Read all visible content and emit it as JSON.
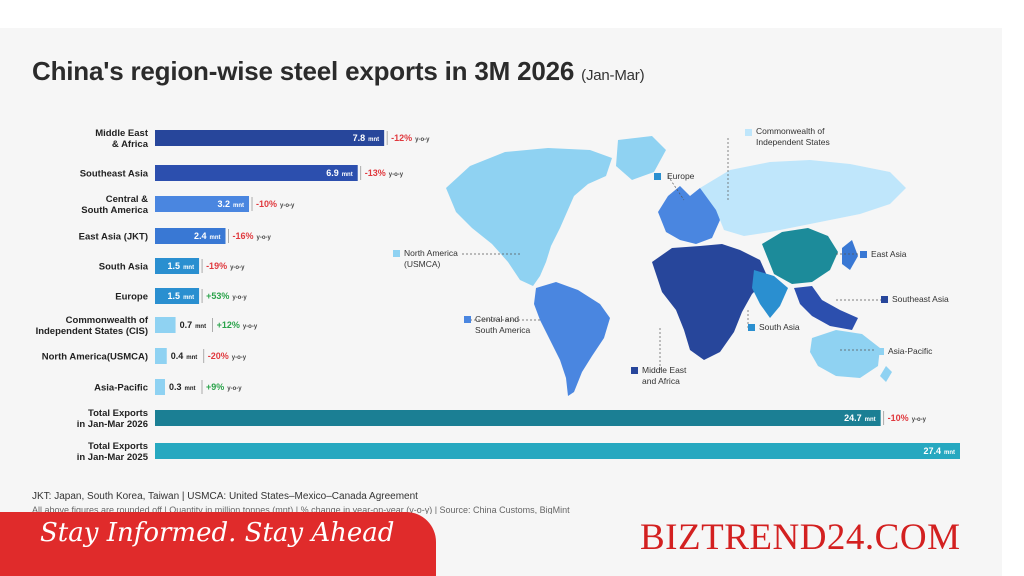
{
  "title": "China's region-wise steel exports in 3M 2026",
  "title_sub": "(Jan-Mar)",
  "unit": "mnt",
  "yoy_label": "y-o-y",
  "colors": {
    "neg": "#e0393e",
    "pos": "#2aa34a",
    "middle_east_africa": "#27469b",
    "southeast_asia": "#2c4fae",
    "east_asia": "#3978d4",
    "central_south_america": "#4a86e0",
    "south_asia": "#2a8fd0",
    "light": "#8fd2f2",
    "total": "#1b8aa3",
    "map_cis": "#bfe6fb",
    "map_teal": "#1c8b9a"
  },
  "chart_data": {
    "type": "bar",
    "orientation": "horizontal",
    "categories": [
      "Middle East\n& Africa",
      "Southeast Asia",
      "Central &\nSouth America",
      "East Asia (JKT)",
      "South Asia",
      "Europe",
      "Commonwealth of\nIndependent States (CIS)",
      "North America(USMCA)",
      "Asia-Pacific",
      "Total Exports\nin Jan-Mar 2026",
      "Total Exports\nin Jan-Mar 2025"
    ],
    "values": [
      7.8,
      6.9,
      3.2,
      2.4,
      1.5,
      1.5,
      0.7,
      0.4,
      0.3,
      24.7,
      27.4
    ],
    "value_labels": [
      "7.8",
      "6.9",
      "3.2",
      "2.4",
      "1.5",
      "1.5",
      "0.7",
      "0.4",
      "0.3",
      "24.7",
      "27.4"
    ],
    "yoy_change": [
      "-12%",
      "-13%",
      "-10%",
      "-16%",
      "-19%",
      "+53%",
      "+12%",
      "-20%",
      "+9%",
      "-10%",
      ""
    ],
    "bar_colors": [
      "#27469b",
      "#2c4fae",
      "#4a86e0",
      "#3978d4",
      "#2a8fd0",
      "#2a8fd0",
      "#8fd2f2",
      "#8fd2f2",
      "#8fd2f2",
      "#1b7f94",
      "#26a8c0"
    ],
    "xlim": [
      0,
      27.4
    ],
    "xlabel": "",
    "ylabel": ""
  },
  "map": {
    "labels": [
      "Commonwealth of\nIndependent States",
      "Europe",
      "North America\n(USMCA)",
      "East Asia",
      "Southeast Asia",
      "Central and\nSouth America",
      "South Asia",
      "Asia-Pacific",
      "Middle East\nand Africa"
    ]
  },
  "footnote_1": "JKT: Japan, South Korea, Taiwan | USMCA: United States–Mexico–Canada Agreement",
  "footnote_2": "All above figures are rounded off | Quantity in million tonnes (mnt) | % change in year-on-year (y-o-y) | Source: China Customs, BigMint",
  "banner": "Stay Informed. Stay Ahead",
  "brand": "BIZTREND24.COM"
}
